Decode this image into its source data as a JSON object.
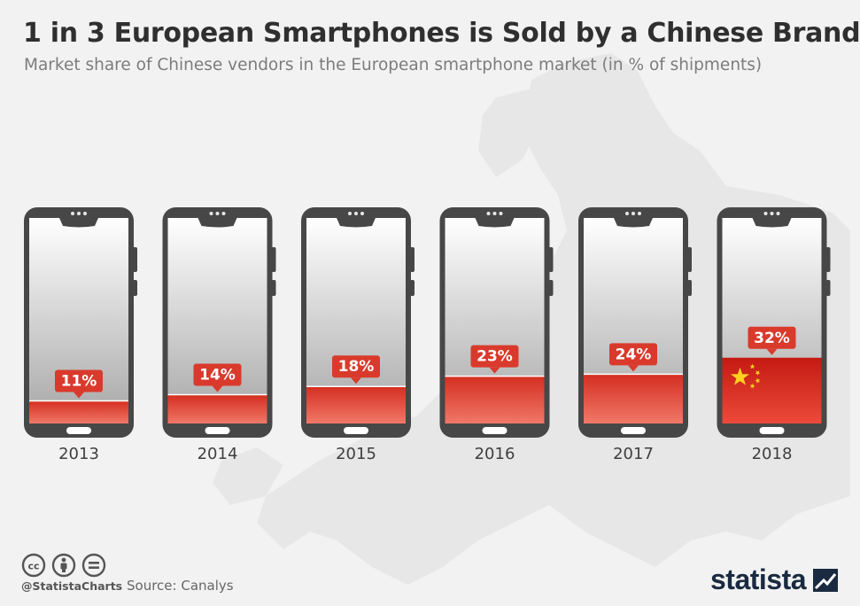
{
  "title": "1 in 3 European Smartphones is Sold by a Chinese Brand",
  "subtitle": "Market share of Chinese vendors in the European smartphone market (in % of shipments)",
  "chart_data": {
    "type": "bar",
    "categories": [
      "2013",
      "2014",
      "2015",
      "2016",
      "2017",
      "2018"
    ],
    "values": [
      11,
      14,
      18,
      23,
      24,
      32
    ],
    "value_labels": [
      "11%",
      "14%",
      "18%",
      "23%",
      "24%",
      "32%"
    ],
    "unit": "%",
    "ylabel": "% of shipments",
    "ylim": [
      0,
      100
    ],
    "colors": {
      "fill": "#e23a2a",
      "label_bg": "#d93a2c",
      "phone_frame": "#474747",
      "china_star": "#ffd21f"
    }
  },
  "footer": {
    "handle": "@StatistaCharts",
    "source": "Source: Canalys",
    "logo": "statista"
  },
  "icons": [
    "creative-commons-icon",
    "attribution-icon",
    "no-derivatives-icon",
    "statista-logo-icon"
  ]
}
